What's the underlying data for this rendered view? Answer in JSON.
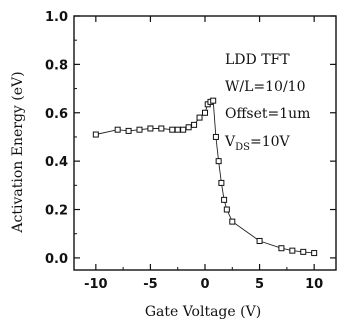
{
  "chart_data": {
    "type": "scatter",
    "xlabel": "Gate Voltage (V)",
    "ylabel": "Activation Energy (eV)",
    "xlim": [
      -12,
      12
    ],
    "ylim": [
      -0.05,
      1.0
    ],
    "x_ticks": [
      -10,
      -5,
      0,
      5,
      10
    ],
    "x_tick_labels": [
      "-10",
      "-5",
      "0",
      "5",
      "10"
    ],
    "y_ticks": [
      0.0,
      0.2,
      0.4,
      0.6,
      0.8,
      1.0
    ],
    "y_tick_labels": [
      "0.0",
      "0.2",
      "0.4",
      "0.6",
      "0.8",
      "1.0"
    ],
    "grid": false,
    "annotations": [
      "LDD TFT",
      "W/L=10/10",
      "Offset=1um"
    ],
    "vds": {
      "prefix": "V",
      "subscript": "DS",
      "suffix": "=10V"
    },
    "series": [
      {
        "marker": "open-square",
        "line": "solid-thin",
        "points": [
          [
            -10,
            0.51
          ],
          [
            -8,
            0.53
          ],
          [
            -7,
            0.525
          ],
          [
            -6,
            0.53
          ],
          [
            -5,
            0.535
          ],
          [
            -4,
            0.535
          ],
          [
            -3,
            0.53
          ],
          [
            -2.5,
            0.53
          ],
          [
            -2,
            0.53
          ],
          [
            -1.5,
            0.54
          ],
          [
            -1,
            0.55
          ],
          [
            -0.5,
            0.58
          ],
          [
            0,
            0.6
          ],
          [
            0.25,
            0.635
          ],
          [
            0.5,
            0.645
          ],
          [
            0.75,
            0.65
          ],
          [
            1,
            0.5
          ],
          [
            1.25,
            0.4
          ],
          [
            1.5,
            0.31
          ],
          [
            1.75,
            0.24
          ],
          [
            2,
            0.2
          ],
          [
            2.5,
            0.15
          ],
          [
            5,
            0.07
          ],
          [
            7,
            0.04
          ],
          [
            8,
            0.03
          ],
          [
            9,
            0.025
          ],
          [
            10,
            0.02
          ]
        ]
      }
    ]
  }
}
